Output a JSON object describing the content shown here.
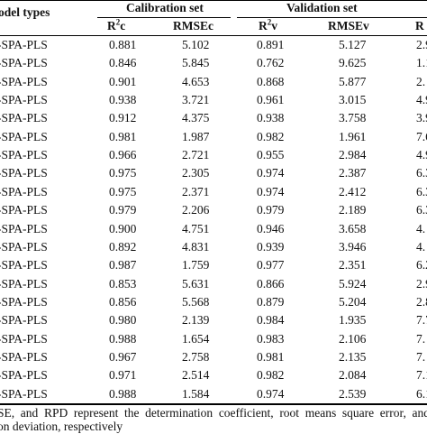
{
  "table": {
    "header": {
      "model_types": "odel types",
      "calibration_set": "Calibration set",
      "validation_set": "Validation set",
      "r2c_base": "R",
      "r2c_sup": "2",
      "r2c_sub": "c",
      "rmsec": "RMSEc",
      "r2v_base": "R",
      "r2v_sup": "2",
      "r2v_sub": "v",
      "rmsev": "RMSEv",
      "rpd": "R"
    },
    "rows": [
      [
        "-SPA-PLS",
        "0.881",
        "5.102",
        "0.891",
        "5.127",
        "2.9"
      ],
      [
        "-SPA-PLS",
        "0.846",
        "5.845",
        "0.762",
        "9.625",
        "1.1"
      ],
      [
        "-SPA-PLS",
        "0.901",
        "4.653",
        "0.868",
        "5.877",
        "2."
      ],
      [
        "-SPA-PLS",
        "0.938",
        "3.721",
        "0.961",
        "3.015",
        "4.9"
      ],
      [
        "-SPA-PLS",
        "0.912",
        "4.375",
        "0.938",
        "3.758",
        "3.9"
      ],
      [
        "-SPA-PLS",
        "0.981",
        "1.987",
        "0.982",
        "1.961",
        "7.6"
      ],
      [
        "-SPA-PLS",
        "0.966",
        "2.721",
        "0.955",
        "2.984",
        "4.9"
      ],
      [
        "-SPA-PLS",
        "0.975",
        "2.305",
        "0.974",
        "2.387",
        "6.3"
      ],
      [
        "-SPA-PLS",
        "0.975",
        "2.371",
        "0.974",
        "2.412",
        "6.3"
      ],
      [
        "-SPA-PLS",
        "0.979",
        "2.206",
        "0.979",
        "2.189",
        "6.3"
      ],
      [
        "-SPA-PLS",
        "0.900",
        "4.751",
        "0.946",
        "3.658",
        "4."
      ],
      [
        "-SPA-PLS",
        "0.892",
        "4.831",
        "0.939",
        "3.946",
        "4."
      ],
      [
        "-SPA-PLS",
        "0.987",
        "1.759",
        "0.977",
        "2.351",
        "6.2"
      ],
      [
        "-SPA-PLS",
        "0.853",
        "5.631",
        "0.866",
        "5.924",
        "2.9"
      ],
      [
        "-SPA-PLS",
        "0.856",
        "5.568",
        "0.879",
        "5.204",
        "2.8"
      ],
      [
        "-SPA-PLS",
        "0.980",
        "2.139",
        "0.984",
        "1.935",
        "7.7"
      ],
      [
        "-SPA-PLS",
        "0.988",
        "1.654",
        "0.983",
        "2.106",
        "7."
      ],
      [
        "-SPA-PLS",
        "0.967",
        "2.758",
        "0.981",
        "2.135",
        "7."
      ],
      [
        "-SPA-PLS",
        "0.971",
        "2.514",
        "0.982",
        "2.084",
        "7.1"
      ],
      [
        "-SPA-PLS",
        "0.988",
        "1.584",
        "0.974",
        "2.539",
        "6.1"
      ]
    ]
  },
  "footnote": {
    "line1_words": [
      "SE,",
      "and",
      "RPD",
      "represent",
      "the",
      "determination",
      "coefficient,",
      "root",
      "means",
      "square",
      "error,",
      "and"
    ],
    "line2": "on deviation, respectively"
  }
}
